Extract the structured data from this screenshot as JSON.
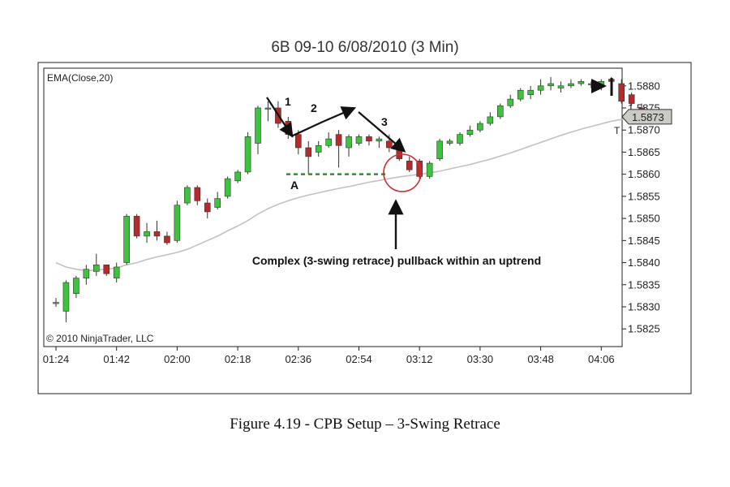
{
  "chart_data": {
    "type": "candlestick",
    "title": "6B 09-10  6/08/2010 (3 Min)",
    "caption": "Figure 4.19 - CPB Setup – 3-Swing Retrace",
    "indicator_label": "EMA(Close,20)",
    "copyright": "© 2010 NinjaTrader, LLC",
    "price_tag": "1.5873",
    "price_tag_suffix": "T",
    "x_tick_labels": [
      "01:24",
      "01:42",
      "02:00",
      "02:18",
      "02:36",
      "02:54",
      "03:12",
      "03:30",
      "03:48",
      "04:06"
    ],
    "y_ticks": [
      1.5825,
      1.583,
      1.5835,
      1.584,
      1.5845,
      1.585,
      1.5855,
      1.586,
      1.5865,
      1.587,
      1.5875,
      1.588
    ],
    "y_tick_labels": [
      "1.5825",
      "1.5830",
      "1.5835",
      "1.5840",
      "1.5845",
      "1.5850",
      "1.5855",
      "1.5860",
      "1.5865",
      "1.5870",
      "1.5875",
      "1.5880"
    ],
    "ylim": [
      1.5821,
      1.5884
    ],
    "grid": false,
    "colors": {
      "up": "#3cc43c",
      "down": "#b52a2a",
      "ema": "#c8c0c0",
      "signal": "#2f8f2f",
      "circle": "#d03030"
    },
    "candles": [
      {
        "o": 1.5831,
        "h": 1.5832,
        "l": 1.583,
        "c": 1.5831
      },
      {
        "o": 1.5829,
        "h": 1.5836,
        "l": 1.58265,
        "c": 1.58355
      },
      {
        "o": 1.5833,
        "h": 1.5837,
        "l": 1.5832,
        "c": 1.58365
      },
      {
        "o": 1.58365,
        "h": 1.58395,
        "l": 1.5835,
        "c": 1.58385
      },
      {
        "o": 1.5838,
        "h": 1.5842,
        "l": 1.5837,
        "c": 1.58395
      },
      {
        "o": 1.58395,
        "h": 1.58395,
        "l": 1.5837,
        "c": 1.58375
      },
      {
        "o": 1.58365,
        "h": 1.584,
        "l": 1.58355,
        "c": 1.5839
      },
      {
        "o": 1.584,
        "h": 1.5851,
        "l": 1.58395,
        "c": 1.58505
      },
      {
        "o": 1.58505,
        "h": 1.5851,
        "l": 1.58455,
        "c": 1.5846
      },
      {
        "o": 1.5846,
        "h": 1.5849,
        "l": 1.58445,
        "c": 1.5847
      },
      {
        "o": 1.5847,
        "h": 1.58495,
        "l": 1.5845,
        "c": 1.5846
      },
      {
        "o": 1.5846,
        "h": 1.5847,
        "l": 1.5844,
        "c": 1.58445
      },
      {
        "o": 1.5845,
        "h": 1.5854,
        "l": 1.58445,
        "c": 1.5853
      },
      {
        "o": 1.58535,
        "h": 1.58575,
        "l": 1.5853,
        "c": 1.5857
      },
      {
        "o": 1.5857,
        "h": 1.58575,
        "l": 1.5853,
        "c": 1.5854
      },
      {
        "o": 1.58535,
        "h": 1.58545,
        "l": 1.585,
        "c": 1.58515
      },
      {
        "o": 1.58525,
        "h": 1.5856,
        "l": 1.5852,
        "c": 1.58545
      },
      {
        "o": 1.5855,
        "h": 1.58595,
        "l": 1.58545,
        "c": 1.5859
      },
      {
        "o": 1.58585,
        "h": 1.5861,
        "l": 1.5858,
        "c": 1.58605
      },
      {
        "o": 1.58605,
        "h": 1.58695,
        "l": 1.586,
        "c": 1.58685
      },
      {
        "o": 1.5867,
        "h": 1.58755,
        "l": 1.58645,
        "c": 1.5875
      },
      {
        "o": 1.5875,
        "h": 1.58765,
        "l": 1.5872,
        "c": 1.5875
      },
      {
        "o": 1.5875,
        "h": 1.58765,
        "l": 1.58705,
        "c": 1.58715
      },
      {
        "o": 1.5872,
        "h": 1.5873,
        "l": 1.5868,
        "c": 1.5869
      },
      {
        "o": 1.5869,
        "h": 1.587,
        "l": 1.58645,
        "c": 1.5866
      },
      {
        "o": 1.5866,
        "h": 1.58675,
        "l": 1.586,
        "c": 1.5864
      },
      {
        "o": 1.5865,
        "h": 1.58675,
        "l": 1.5864,
        "c": 1.58665
      },
      {
        "o": 1.58665,
        "h": 1.58695,
        "l": 1.5866,
        "c": 1.5868
      },
      {
        "o": 1.5869,
        "h": 1.587,
        "l": 1.58615,
        "c": 1.58665
      },
      {
        "o": 1.5866,
        "h": 1.5869,
        "l": 1.5864,
        "c": 1.58685
      },
      {
        "o": 1.5867,
        "h": 1.5869,
        "l": 1.58665,
        "c": 1.58685
      },
      {
        "o": 1.58685,
        "h": 1.5869,
        "l": 1.58665,
        "c": 1.58675
      },
      {
        "o": 1.58675,
        "h": 1.58685,
        "l": 1.5866,
        "c": 1.5868
      },
      {
        "o": 1.58675,
        "h": 1.5869,
        "l": 1.5865,
        "c": 1.5866
      },
      {
        "o": 1.5866,
        "h": 1.5867,
        "l": 1.5863,
        "c": 1.58635
      },
      {
        "o": 1.5863,
        "h": 1.5864,
        "l": 1.58605,
        "c": 1.5861
      },
      {
        "o": 1.5863,
        "h": 1.58635,
        "l": 1.5859,
        "c": 1.58595
      },
      {
        "o": 1.58595,
        "h": 1.5863,
        "l": 1.5859,
        "c": 1.58625
      },
      {
        "o": 1.58635,
        "h": 1.5868,
        "l": 1.5863,
        "c": 1.58675
      },
      {
        "o": 1.5867,
        "h": 1.5868,
        "l": 1.58665,
        "c": 1.58675
      },
      {
        "o": 1.5867,
        "h": 1.58695,
        "l": 1.58665,
        "c": 1.5869
      },
      {
        "o": 1.5869,
        "h": 1.5871,
        "l": 1.58685,
        "c": 1.587
      },
      {
        "o": 1.587,
        "h": 1.5872,
        "l": 1.58695,
        "c": 1.58715
      },
      {
        "o": 1.58715,
        "h": 1.5874,
        "l": 1.5871,
        "c": 1.5873
      },
      {
        "o": 1.5873,
        "h": 1.5876,
        "l": 1.58725,
        "c": 1.58755
      },
      {
        "o": 1.58755,
        "h": 1.5878,
        "l": 1.5875,
        "c": 1.5877
      },
      {
        "o": 1.5877,
        "h": 1.58795,
        "l": 1.58765,
        "c": 1.5879
      },
      {
        "o": 1.5878,
        "h": 1.588,
        "l": 1.5877,
        "c": 1.5879
      },
      {
        "o": 1.5879,
        "h": 1.58815,
        "l": 1.5878,
        "c": 1.588
      },
      {
        "o": 1.588,
        "h": 1.5882,
        "l": 1.5879,
        "c": 1.58805
      },
      {
        "o": 1.58795,
        "h": 1.5881,
        "l": 1.58785,
        "c": 1.588
      },
      {
        "o": 1.588,
        "h": 1.58815,
        "l": 1.58795,
        "c": 1.58805
      },
      {
        "o": 1.58805,
        "h": 1.58815,
        "l": 1.588,
        "c": 1.5881
      },
      {
        "o": 1.58805,
        "h": 1.5881,
        "l": 1.58795,
        "c": 1.58805
      },
      {
        "o": 1.588,
        "h": 1.58815,
        "l": 1.5879,
        "c": 1.5881
      },
      {
        "o": 1.58815,
        "h": 1.5882,
        "l": 1.58805,
        "c": 1.5881
      },
      {
        "o": 1.58805,
        "h": 1.58815,
        "l": 1.5876,
        "c": 1.58765
      },
      {
        "o": 1.5878,
        "h": 1.58785,
        "l": 1.58755,
        "c": 1.5876
      },
      {
        "o": 1.5875,
        "h": 1.5876,
        "l": 1.58725,
        "c": 1.58735
      }
    ],
    "ema": [
      1.584,
      1.5839,
      1.58385,
      1.58382,
      1.58383,
      1.58385,
      1.58388,
      1.58395,
      1.584,
      1.58407,
      1.58413,
      1.58418,
      1.58423,
      1.5843,
      1.5844,
      1.5845,
      1.5846,
      1.58472,
      1.58483,
      1.58495,
      1.5851,
      1.58522,
      1.58532,
      1.5854,
      1.58547,
      1.58553,
      1.58558,
      1.58563,
      1.58568,
      1.58572,
      1.58577,
      1.58582,
      1.58586,
      1.5859,
      1.58594,
      1.58597,
      1.586,
      1.58603,
      1.58607,
      1.58612,
      1.58617,
      1.58622,
      1.58628,
      1.58634,
      1.58641,
      1.58648,
      1.58656,
      1.58664,
      1.58672,
      1.5868,
      1.58688,
      1.58695,
      1.58702,
      1.58708,
      1.58714,
      1.5872,
      1.58724,
      1.58727,
      1.58728
    ],
    "annotations": {
      "label_1": "1",
      "label_2": "2",
      "label_3": "3",
      "label_a": "A",
      "setup_text": "Complex (3-swing retrace) pullback within an uptrend",
      "signal_level": 1.586
    }
  }
}
